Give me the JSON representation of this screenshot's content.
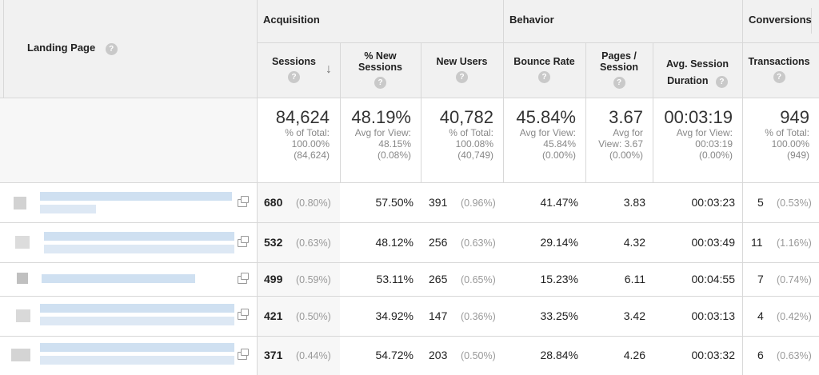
{
  "header": {
    "landing_page": "Landing Page",
    "help_glyph": "?",
    "groups": {
      "acquisition": "Acquisition",
      "behavior": "Behavior",
      "conversions": "Conversions"
    },
    "columns": {
      "sessions": "Sessions",
      "new_sessions_1": "% New",
      "new_sessions_2": "Sessions",
      "new_users": "New Users",
      "bounce_rate": "Bounce Rate",
      "pages_session_1": "Pages /",
      "pages_session_2": "Session",
      "avg_duration_1": "Avg. Session",
      "avg_duration_2": "Duration",
      "transactions": "Transactions"
    },
    "sort_indicator": "↓"
  },
  "totals": {
    "sessions": {
      "value": "84,624",
      "l1": "% of Total:",
      "l2": "100.00%",
      "l3": "(84,624)"
    },
    "new_sessions": {
      "value": "48.19%",
      "l1": "Avg for View:",
      "l2": "48.15%",
      "l3": "(0.08%)"
    },
    "new_users": {
      "value": "40,782",
      "l1": "% of Total:",
      "l2": "100.08%",
      "l3": "(40,749)"
    },
    "bounce_rate": {
      "value": "45.84%",
      "l1": "Avg for View:",
      "l2": "45.84%",
      "l3": "(0.00%)"
    },
    "pages_session": {
      "value": "3.67",
      "l1": "Avg for",
      "l2": "View: 3.67",
      "l3": "(0.00%)"
    },
    "avg_duration": {
      "value": "00:03:19",
      "l1": "Avg for View:",
      "l2": "00:03:19",
      "l3": "(0.00%)"
    },
    "transactions": {
      "value": "949",
      "l1": "% of Total:",
      "l2": "100.00%",
      "l3": "(949)"
    }
  },
  "rows": [
    {
      "sessions": "680",
      "sessions_pct": "(0.80%)",
      "new_sessions": "57.50%",
      "new_users": "391",
      "new_users_pct": "(0.96%)",
      "bounce_rate": "41.47%",
      "pages_session": "3.83",
      "avg_duration": "00:03:23",
      "transactions": "5",
      "transactions_pct": "(0.53%)"
    },
    {
      "sessions": "532",
      "sessions_pct": "(0.63%)",
      "new_sessions": "48.12%",
      "new_users": "256",
      "new_users_pct": "(0.63%)",
      "bounce_rate": "29.14%",
      "pages_session": "4.32",
      "avg_duration": "00:03:49",
      "transactions": "11",
      "transactions_pct": "(1.16%)"
    },
    {
      "sessions": "499",
      "sessions_pct": "(0.59%)",
      "new_sessions": "53.11%",
      "new_users": "265",
      "new_users_pct": "(0.65%)",
      "bounce_rate": "15.23%",
      "pages_session": "6.11",
      "avg_duration": "00:04:55",
      "transactions": "7",
      "transactions_pct": "(0.74%)"
    },
    {
      "sessions": "421",
      "sessions_pct": "(0.50%)",
      "new_sessions": "34.92%",
      "new_users": "147",
      "new_users_pct": "(0.36%)",
      "bounce_rate": "33.25%",
      "pages_session": "3.42",
      "avg_duration": "00:03:13",
      "transactions": "4",
      "transactions_pct": "(0.42%)"
    },
    {
      "sessions": "371",
      "sessions_pct": "(0.44%)",
      "new_sessions": "54.72%",
      "new_users": "203",
      "new_users_pct": "(0.50%)",
      "bounce_rate": "28.84%",
      "pages_session": "4.26",
      "avg_duration": "00:03:32",
      "transactions": "6",
      "transactions_pct": "(0.63%)"
    }
  ]
}
